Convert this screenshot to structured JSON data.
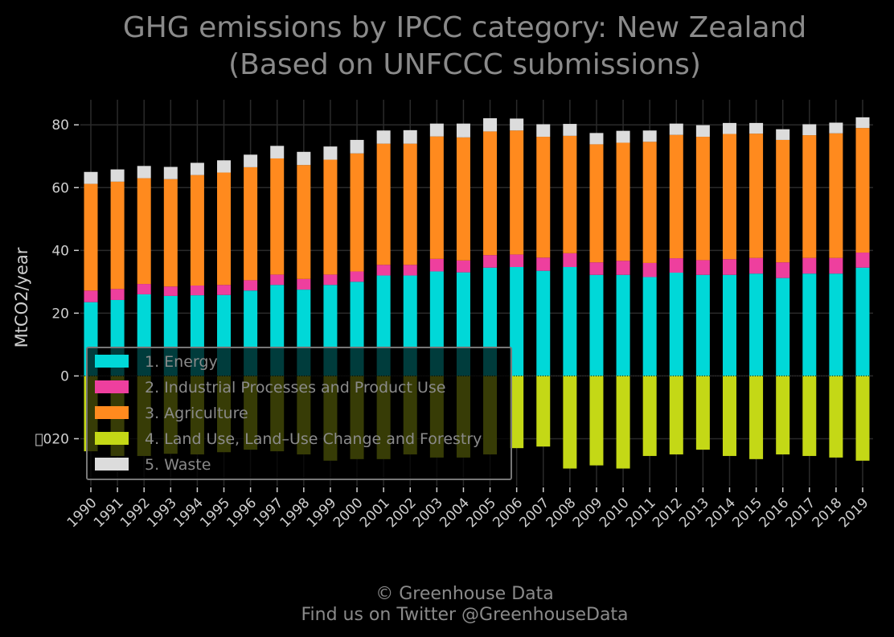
{
  "footer": {
    "copyright": "© Greenhouse Data",
    "twitter": "Find us on Twitter @GreenhouseData"
  },
  "colors": {
    "background": "#000000",
    "grid": "#2a2a2a",
    "energy": "#00d8d8",
    "industrial": "#ee3f9e",
    "agriculture": "#ff8a1e",
    "lulucf": "#c4d816",
    "waste": "#dcdcdc"
  },
  "chart_data": {
    "type": "bar",
    "stacked": true,
    "title": "GHG emissions by IPCC category: New Zealand",
    "subtitle": "(Based on UNFCCC submissions)",
    "xlabel": "",
    "ylabel": "MtCO2/year",
    "ylim": [
      -35,
      88
    ],
    "yticks": [
      -20,
      0,
      20,
      40,
      60,
      80
    ],
    "ytick_labels": [
      "\u0000020",
      "0",
      "20",
      "40",
      "60",
      "80"
    ],
    "grid": true,
    "legend_position": "lower-left",
    "categories": [
      "1990",
      "1991",
      "1992",
      "1993",
      "1994",
      "1995",
      "1996",
      "1997",
      "1998",
      "1999",
      "2000",
      "2001",
      "2002",
      "2003",
      "2004",
      "2005",
      "2006",
      "2007",
      "2008",
      "2009",
      "2010",
      "2011",
      "2012",
      "2013",
      "2014",
      "2015",
      "2016",
      "2017",
      "2018",
      "2019"
    ],
    "series": [
      {
        "name": "1. Energy",
        "color": "#00d8d8",
        "values": [
          23.5,
          24.2,
          26.0,
          25.5,
          25.7,
          25.8,
          27.2,
          29.0,
          27.5,
          29.0,
          30.0,
          32.0,
          32.0,
          33.3,
          33.0,
          34.5,
          34.7,
          33.5,
          34.7,
          32.2,
          32.2,
          31.5,
          32.9,
          32.2,
          32.2,
          32.6,
          31.2,
          32.6,
          32.6,
          34.5
        ]
      },
      {
        "name": "2. Industrial Processes and Product Use",
        "color": "#ee3f9e",
        "values": [
          3.7,
          3.5,
          3.3,
          3.0,
          3.1,
          3.2,
          3.3,
          3.3,
          3.4,
          3.3,
          3.3,
          3.4,
          3.4,
          4.0,
          3.8,
          4.0,
          4.0,
          4.2,
          4.4,
          4.0,
          4.5,
          4.5,
          4.6,
          4.7,
          5.0,
          5.0,
          5.0,
          5.0,
          5.0,
          4.8
        ]
      },
      {
        "name": "3. Agriculture",
        "color": "#ff8a1e",
        "values": [
          34.0,
          34.2,
          33.7,
          34.2,
          35.2,
          35.8,
          36.0,
          37.0,
          36.3,
          36.6,
          37.6,
          38.6,
          38.6,
          39.0,
          39.2,
          39.4,
          39.5,
          38.5,
          37.4,
          37.6,
          37.6,
          38.6,
          39.3,
          39.3,
          39.9,
          39.6,
          39.0,
          39.1,
          39.7,
          39.7
        ]
      },
      {
        "name": "4. Land Use, Land–Use Change and Forestry",
        "color": "#c4d816",
        "values": [
          -24.0,
          -25.5,
          -25.5,
          -24.8,
          -25.0,
          -24.3,
          -23.5,
          -24.0,
          -25.0,
          -27.0,
          -26.5,
          -26.5,
          -25.0,
          -26.0,
          -26.0,
          -25.0,
          -23.0,
          -22.5,
          -29.5,
          -28.5,
          -29.5,
          -25.5,
          -25.0,
          -23.5,
          -25.5,
          -26.5,
          -25.0,
          -25.5,
          -26.0,
          -27.0
        ]
      },
      {
        "name": "5. Waste",
        "color": "#dcdcdc",
        "values": [
          3.8,
          3.9,
          3.9,
          3.9,
          3.9,
          3.9,
          4.0,
          4.0,
          4.2,
          4.2,
          4.3,
          4.2,
          4.3,
          4.1,
          4.4,
          4.2,
          3.8,
          4.0,
          3.8,
          3.6,
          3.8,
          3.6,
          3.6,
          3.7,
          3.5,
          3.4,
          3.4,
          3.5,
          3.4,
          3.4
        ]
      }
    ]
  }
}
